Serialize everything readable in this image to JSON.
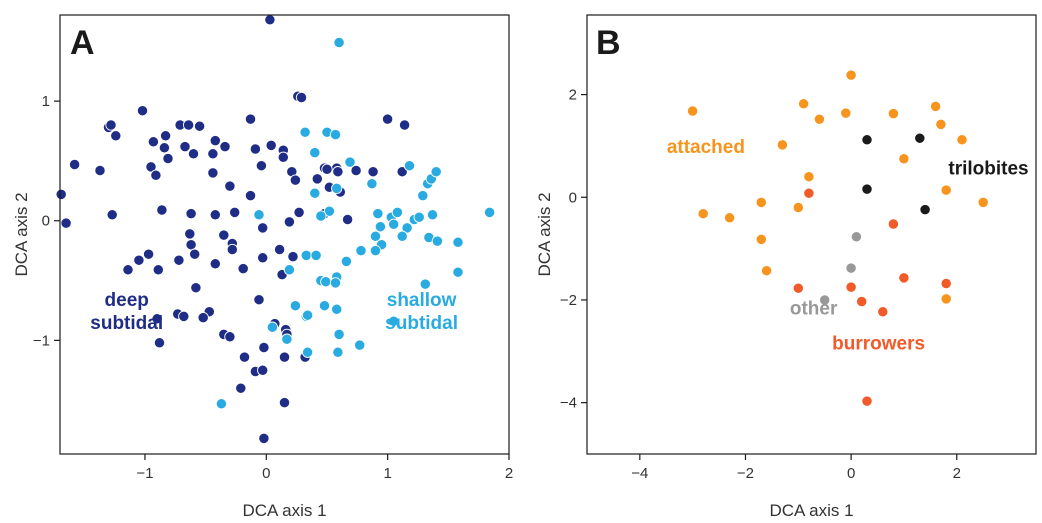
{
  "chart_data": [
    {
      "type": "scatter",
      "panel_label": "A",
      "xlabel": "DCA axis 1",
      "ylabel": "DCA axis 2",
      "xlim": [
        -1.7,
        2.0
      ],
      "ylim": [
        -1.95,
        1.72
      ],
      "xticks": [
        -1,
        0,
        1,
        2
      ],
      "yticks": [
        -1,
        0,
        1
      ],
      "grid": false,
      "annotations": [
        {
          "lines": [
            "deep",
            "subtidal"
          ],
          "x": -1.15,
          "y": -0.75,
          "color": "#1f2d86"
        },
        {
          "lines": [
            "shallow",
            "subtidal"
          ],
          "x": 1.28,
          "y": -0.75,
          "color": "#29abe2"
        }
      ],
      "series": [
        {
          "color": "#1f2d86",
          "points": [
            [
              0.03,
              1.68
            ],
            [
              0.26,
              1.04
            ],
            [
              0.29,
              1.03
            ],
            [
              -1.3,
              0.78
            ],
            [
              -1.28,
              0.8
            ],
            [
              -1.24,
              0.71
            ],
            [
              -1.02,
              0.92
            ],
            [
              -0.83,
              0.71
            ],
            [
              -0.71,
              0.8
            ],
            [
              -0.64,
              0.8
            ],
            [
              -0.55,
              0.79
            ],
            [
              -0.93,
              0.66
            ],
            [
              -0.84,
              0.61
            ],
            [
              -0.81,
              0.52
            ],
            [
              -0.67,
              0.62
            ],
            [
              -0.6,
              0.56
            ],
            [
              -0.42,
              0.67
            ],
            [
              -0.44,
              0.56
            ],
            [
              -0.34,
              0.62
            ],
            [
              -0.13,
              0.85
            ],
            [
              -0.09,
              0.6
            ],
            [
              0.04,
              0.63
            ],
            [
              0.14,
              0.59
            ],
            [
              0.14,
              0.53
            ],
            [
              0.48,
              0.44
            ],
            [
              0.58,
              0.44
            ],
            [
              0.74,
              0.42
            ],
            [
              -1.58,
              0.47
            ],
            [
              -1.37,
              0.42
            ],
            [
              -0.95,
              0.45
            ],
            [
              -0.91,
              0.38
            ],
            [
              -0.44,
              0.4
            ],
            [
              -0.3,
              0.29
            ],
            [
              -0.04,
              0.46
            ],
            [
              0.21,
              0.41
            ],
            [
              0.42,
              0.35
            ],
            [
              0.5,
              0.43
            ],
            [
              0.24,
              0.34
            ],
            [
              0.52,
              0.28
            ],
            [
              0.59,
              0.41
            ],
            [
              0.88,
              0.41
            ],
            [
              1.12,
              0.41
            ],
            [
              1.14,
              0.8
            ],
            [
              1.0,
              0.85
            ],
            [
              0.61,
              0.24
            ],
            [
              0.48,
              0.06
            ],
            [
              0.67,
              0.01
            ],
            [
              -1.69,
              0.22
            ],
            [
              -1.65,
              -0.02
            ],
            [
              -1.27,
              0.05
            ],
            [
              -0.86,
              0.09
            ],
            [
              -0.62,
              0.06
            ],
            [
              -0.42,
              0.05
            ],
            [
              -0.26,
              0.07
            ],
            [
              -0.13,
              0.21
            ],
            [
              -0.63,
              -0.11
            ],
            [
              -0.62,
              -0.2
            ],
            [
              -0.35,
              -0.12
            ],
            [
              -0.28,
              -0.19
            ],
            [
              -0.03,
              -0.06
            ],
            [
              0.19,
              -0.01
            ],
            [
              0.27,
              0.07
            ],
            [
              -0.28,
              -0.24
            ],
            [
              -0.59,
              -0.28
            ],
            [
              -0.97,
              -0.28
            ],
            [
              -1.05,
              -0.33
            ],
            [
              -1.14,
              -0.41
            ],
            [
              -0.89,
              -0.41
            ],
            [
              -0.72,
              -0.33
            ],
            [
              -0.42,
              -0.36
            ],
            [
              -0.19,
              -0.4
            ],
            [
              0.11,
              -0.24
            ],
            [
              0.22,
              -0.3
            ],
            [
              0.13,
              -0.45
            ],
            [
              -0.03,
              -0.31
            ],
            [
              -0.58,
              -0.56
            ],
            [
              -0.47,
              -0.76
            ],
            [
              -0.73,
              -0.78
            ],
            [
              -0.68,
              -0.8
            ],
            [
              -0.52,
              -0.81
            ],
            [
              -0.9,
              -0.82
            ],
            [
              -0.88,
              -1.02
            ],
            [
              -0.35,
              -0.95
            ],
            [
              -0.3,
              -0.97
            ],
            [
              -0.06,
              -0.66
            ],
            [
              0.07,
              -0.86
            ],
            [
              0.16,
              -0.91
            ],
            [
              0.17,
              -0.95
            ],
            [
              -0.02,
              -1.06
            ],
            [
              -0.18,
              -1.14
            ],
            [
              -0.09,
              -1.26
            ],
            [
              -0.03,
              -1.25
            ],
            [
              0.15,
              -1.14
            ],
            [
              0.32,
              -1.14
            ],
            [
              -0.21,
              -1.4
            ],
            [
              0.15,
              -1.52
            ],
            [
              -0.02,
              -1.82
            ]
          ]
        },
        {
          "color": "#29abe2",
          "points": [
            [
              0.6,
              1.49
            ],
            [
              0.32,
              0.74
            ],
            [
              0.5,
              0.74
            ],
            [
              0.57,
              0.72
            ],
            [
              0.4,
              0.57
            ],
            [
              0.69,
              0.49
            ],
            [
              0.87,
              0.31
            ],
            [
              1.18,
              0.46
            ],
            [
              1.33,
              0.31
            ],
            [
              1.36,
              0.35
            ],
            [
              1.29,
              0.21
            ],
            [
              1.4,
              0.41
            ],
            [
              0.58,
              0.27
            ],
            [
              0.4,
              0.23
            ],
            [
              0.52,
              0.08
            ],
            [
              0.45,
              0.04
            ],
            [
              -0.06,
              0.05
            ],
            [
              0.92,
              0.06
            ],
            [
              1.03,
              0.03
            ],
            [
              1.08,
              0.07
            ],
            [
              0.94,
              -0.05
            ],
            [
              1.05,
              -0.03
            ],
            [
              1.16,
              -0.06
            ],
            [
              1.22,
              0.01
            ],
            [
              1.26,
              0.03
            ],
            [
              1.37,
              0.05
            ],
            [
              1.84,
              0.07
            ],
            [
              0.9,
              -0.13
            ],
            [
              0.95,
              -0.2
            ],
            [
              1.12,
              -0.13
            ],
            [
              1.34,
              -0.14
            ],
            [
              1.58,
              -0.18
            ],
            [
              1.41,
              -0.17
            ],
            [
              0.9,
              -0.25
            ],
            [
              0.78,
              -0.25
            ],
            [
              0.33,
              -0.29
            ],
            [
              0.41,
              -0.29
            ],
            [
              0.19,
              -0.41
            ],
            [
              0.58,
              -0.47
            ],
            [
              0.66,
              -0.34
            ],
            [
              0.45,
              -0.5
            ],
            [
              0.49,
              -0.51
            ],
            [
              0.57,
              -0.52
            ],
            [
              0.58,
              -0.74
            ],
            [
              0.24,
              -0.71
            ],
            [
              0.48,
              -0.71
            ],
            [
              0.33,
              -0.8
            ],
            [
              0.34,
              -0.79
            ],
            [
              0.05,
              -0.89
            ],
            [
              0.6,
              -0.95
            ],
            [
              1.05,
              -0.84
            ],
            [
              1.31,
              -0.53
            ],
            [
              1.58,
              -0.43
            ],
            [
              0.17,
              -0.99
            ],
            [
              0.34,
              -1.1
            ],
            [
              0.59,
              -1.1
            ],
            [
              0.77,
              -1.04
            ],
            [
              -0.37,
              -1.53
            ]
          ]
        }
      ]
    },
    {
      "type": "scatter",
      "panel_label": "B",
      "xlabel": "DCA axis 1",
      "ylabel": "DCA axis 2",
      "xlim": [
        -5.0,
        3.5
      ],
      "ylim": [
        -5.0,
        3.55
      ],
      "xticks": [
        -4,
        -2,
        0,
        2
      ],
      "yticks": [
        -4,
        -2,
        0,
        2
      ],
      "grid": false,
      "annotations": [
        {
          "lines": [
            "attached"
          ],
          "x": -2.75,
          "y": 1.0,
          "color": "#f7941d"
        },
        {
          "lines": [
            "trilobites"
          ],
          "x": 2.6,
          "y": 0.58,
          "color": "#1a1a1a"
        },
        {
          "lines": [
            "other"
          ],
          "x": -0.71,
          "y": -2.15,
          "color": "#999999"
        },
        {
          "lines": [
            "burrowers"
          ],
          "x": 0.52,
          "y": -2.83,
          "color": "#f15a29"
        }
      ],
      "series": [
        {
          "name": "attached",
          "color": "#f7941d",
          "points": [
            [
              -3.0,
              1.68
            ],
            [
              -0.9,
              1.82
            ],
            [
              -0.6,
              1.52
            ],
            [
              0.0,
              2.38
            ],
            [
              -0.1,
              1.64
            ],
            [
              0.8,
              1.63
            ],
            [
              1.6,
              1.77
            ],
            [
              1.7,
              1.42
            ],
            [
              2.1,
              1.12
            ],
            [
              -1.3,
              1.02
            ],
            [
              1.0,
              0.75
            ],
            [
              -0.8,
              0.4
            ],
            [
              1.8,
              0.14
            ],
            [
              2.5,
              -0.1
            ],
            [
              -1.7,
              -0.1
            ],
            [
              -1.0,
              -0.2
            ],
            [
              -2.8,
              -0.32
            ],
            [
              -2.3,
              -0.4
            ],
            [
              -1.7,
              -0.82
            ],
            [
              -1.6,
              -1.43
            ],
            [
              1.8,
              -1.98
            ]
          ]
        },
        {
          "name": "trilobites",
          "color": "#1a1a1a",
          "points": [
            [
              0.3,
              1.12
            ],
            [
              1.3,
              1.15
            ],
            [
              0.3,
              0.16
            ],
            [
              1.4,
              -0.24
            ]
          ]
        },
        {
          "name": "other",
          "color": "#999999",
          "points": [
            [
              0.1,
              -0.77
            ],
            [
              0.0,
              -1.38
            ],
            [
              -0.5,
              -2.0
            ]
          ]
        },
        {
          "name": "burrowers",
          "color": "#f15a29",
          "points": [
            [
              -0.8,
              0.08
            ],
            [
              0.8,
              -0.52
            ],
            [
              1.0,
              -1.57
            ],
            [
              1.8,
              -1.68
            ],
            [
              -1.0,
              -1.77
            ],
            [
              0.0,
              -1.75
            ],
            [
              0.2,
              -2.03
            ],
            [
              0.6,
              -2.23
            ],
            [
              0.3,
              -3.97
            ]
          ]
        }
      ]
    }
  ]
}
